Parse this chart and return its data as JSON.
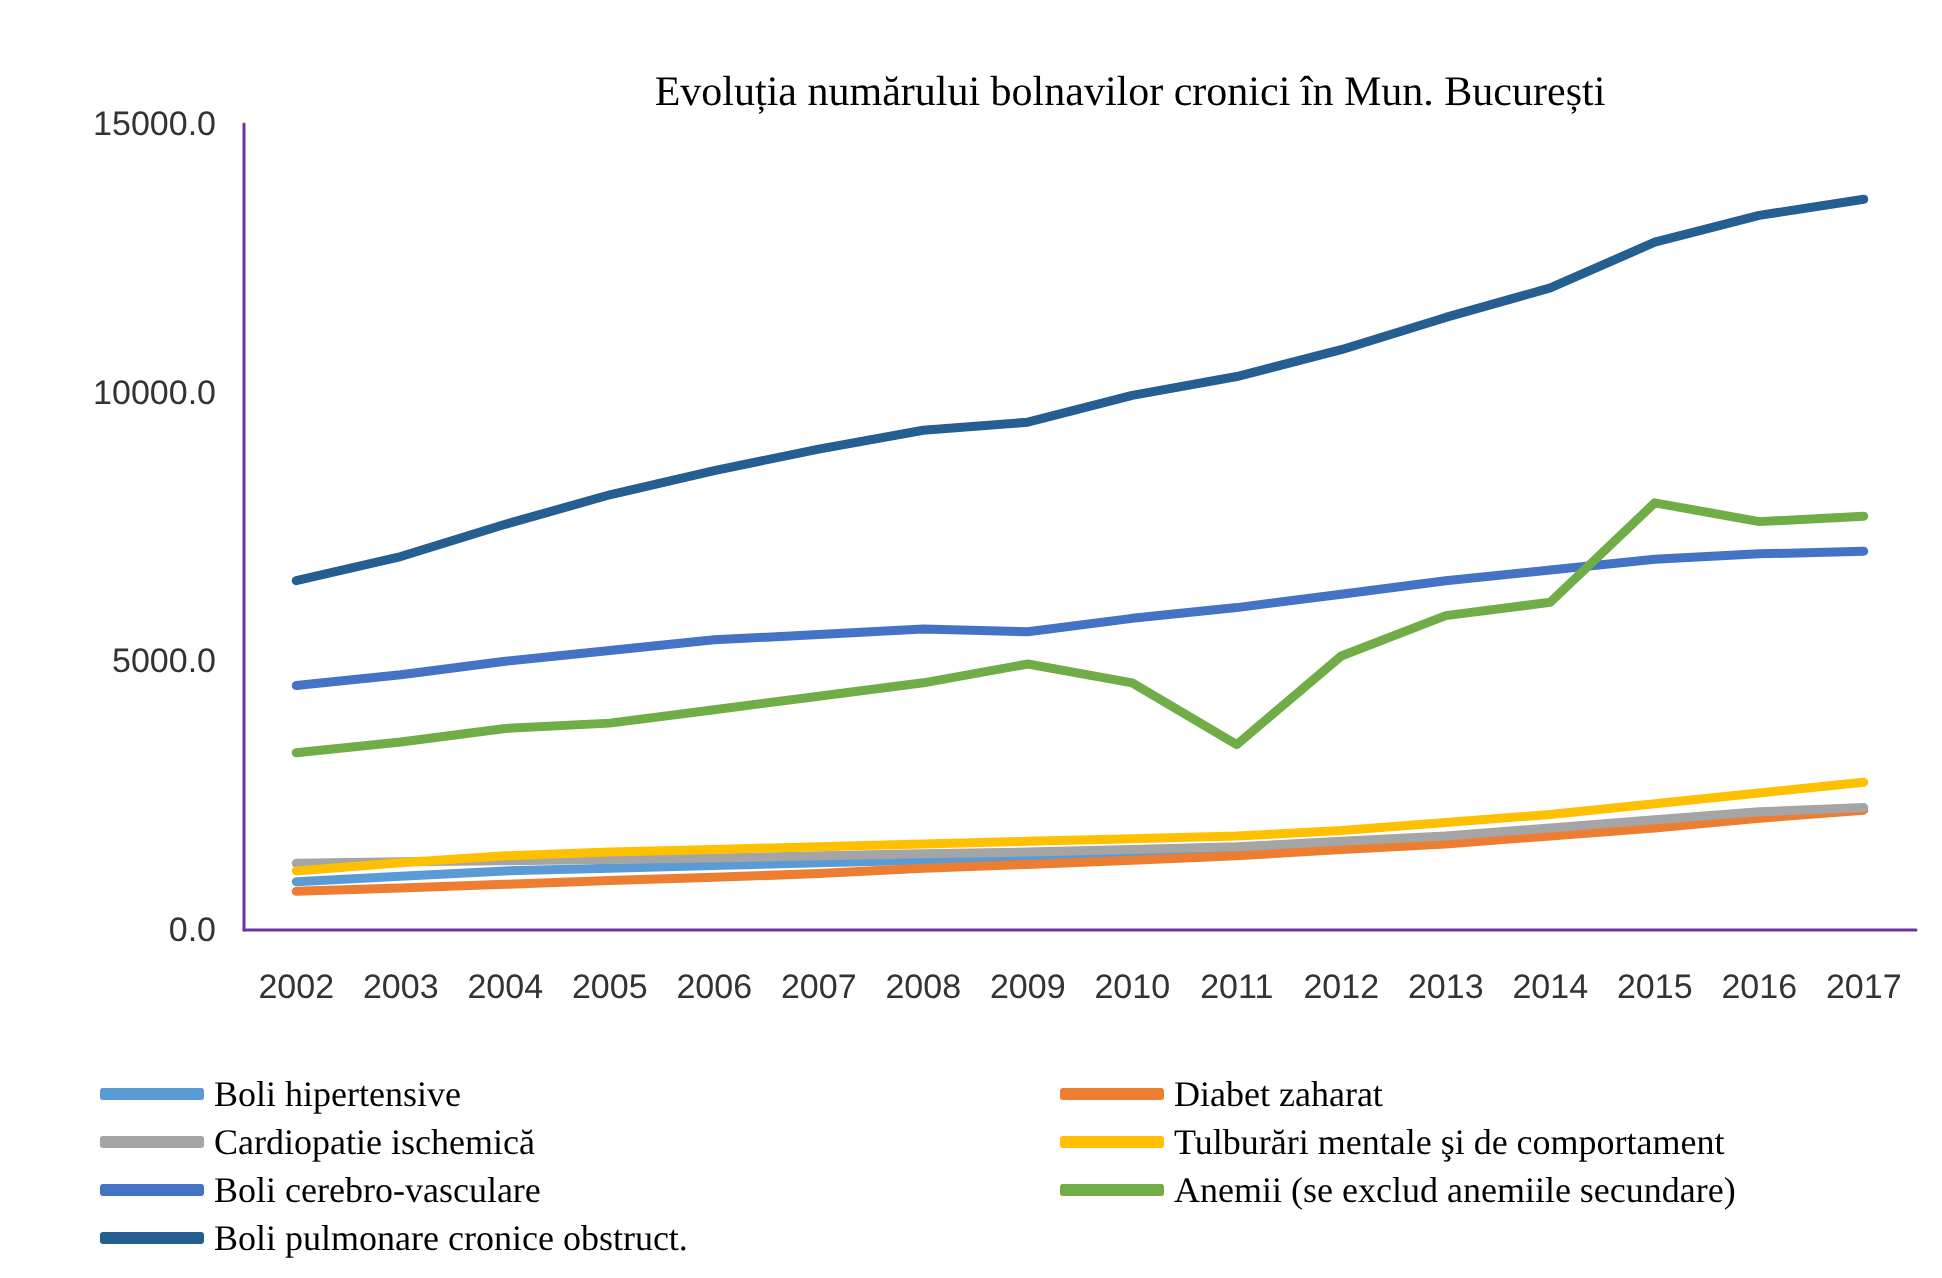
{
  "chart_data": {
    "type": "line",
    "title": "Evoluția numărului bolnavilor cronici în Mun. București",
    "categories": [
      "2002",
      "2003",
      "2004",
      "2005",
      "2006",
      "2007",
      "2008",
      "2009",
      "2010",
      "2011",
      "2012",
      "2013",
      "2014",
      "2015",
      "2016",
      "2017"
    ],
    "ylim": [
      0,
      15000
    ],
    "yticks": [
      {
        "value": 0,
        "label": "0.0"
      },
      {
        "value": 5000,
        "label": "5000.0"
      },
      {
        "value": 10000,
        "label": "10000.0"
      },
      {
        "value": 15000,
        "label": "15000.0"
      }
    ],
    "grid": false,
    "legend": "bottom",
    "marker": "none",
    "line_style": "solid",
    "series": [
      {
        "name": "Boli hipertensive",
        "color": "#5b9bd5",
        "values": [
          900,
          1000,
          1100,
          1150,
          1200,
          1250,
          1300,
          1350,
          1400,
          1450,
          1550,
          null,
          null,
          null,
          null,
          null
        ]
      },
      {
        "name": "Diabet zaharat",
        "color": "#ed7d31",
        "values": [
          720,
          780,
          850,
          920,
          980,
          1050,
          1150,
          1220,
          1300,
          1380,
          1500,
          1600,
          1750,
          1900,
          2080,
          2230
        ]
      },
      {
        "name": "Cardiopatie ischemică",
        "color": "#a5a5a5",
        "values": [
          1240,
          1270,
          1290,
          1310,
          1340,
          1380,
          1420,
          1450,
          1500,
          1550,
          1650,
          1750,
          1900,
          2050,
          2200,
          2280
        ]
      },
      {
        "name": "Tulburări mentale şi de comportament",
        "color": "#ffc000",
        "values": [
          1100,
          1250,
          1380,
          1450,
          1500,
          1550,
          1600,
          1650,
          1700,
          1750,
          1850,
          2000,
          2150,
          2350,
          2550,
          2750
        ]
      },
      {
        "name": "Boli cerebro-vasculare",
        "color": "#4472c4",
        "values": [
          4550,
          4750,
          5000,
          5200,
          5400,
          5500,
          5600,
          5550,
          5800,
          6000,
          6250,
          6500,
          6700,
          6900,
          7000,
          7050
        ]
      },
      {
        "name": "Anemii (se exclud anemiile secundare)",
        "color": "#70ad47",
        "values": [
          3300,
          3500,
          3750,
          3850,
          4100,
          4350,
          4600,
          4950,
          4600,
          3450,
          5100,
          5850,
          6100,
          7950,
          7600,
          7700
        ]
      },
      {
        "name": "Boli pulmonare cronice obstruct.",
        "color": "#255e91",
        "values": [
          6500,
          6950,
          7550,
          8100,
          8550,
          8950,
          9300,
          9450,
          9950,
          10300,
          10800,
          11400,
          11950,
          12800,
          13300,
          13600
        ]
      }
    ]
  }
}
